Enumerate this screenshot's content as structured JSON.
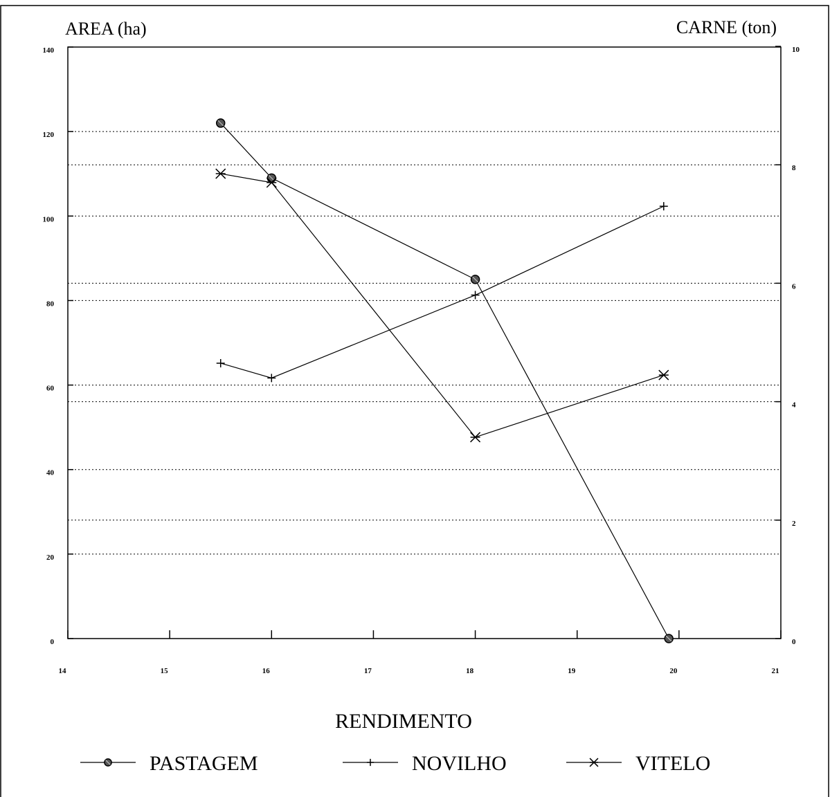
{
  "chart_data": {
    "type": "line",
    "title": "",
    "xlabel": "RENDIMENTO",
    "ylabel_left": "AREA (ha)",
    "ylabel_right": "CARNE (ton)",
    "xlim": [
      14,
      21
    ],
    "ylim_left": [
      0,
      140
    ],
    "ylim_right": [
      0,
      10
    ],
    "x_ticks": [
      "14",
      "15",
      "16",
      "17",
      "18",
      "19",
      "20",
      "21"
    ],
    "y_ticks_left": [
      "0",
      "20",
      "40",
      "60",
      "80",
      "100",
      "120",
      "140"
    ],
    "y_ticks_right": [
      "0",
      "2",
      "4",
      "6",
      "8",
      "10"
    ],
    "grid": "horizontal-dotted",
    "legend_position": "bottom",
    "series": [
      {
        "name": "PASTAGEM",
        "axis": "left",
        "marker": "filled-circle",
        "x": [
          15.5,
          16,
          18,
          19.9
        ],
        "y": [
          122,
          109,
          85,
          0
        ]
      },
      {
        "name": "NOVILHO",
        "axis": "right",
        "marker": "plus",
        "x": [
          15.5,
          16,
          18,
          19.85
        ],
        "y": [
          4.65,
          4.4,
          5.8,
          7.3
        ]
      },
      {
        "name": "VITELO",
        "axis": "right",
        "marker": "asterisk",
        "x": [
          15.5,
          16,
          18,
          19.85
        ],
        "y": [
          7.85,
          7.7,
          3.4,
          4.45
        ]
      }
    ]
  }
}
